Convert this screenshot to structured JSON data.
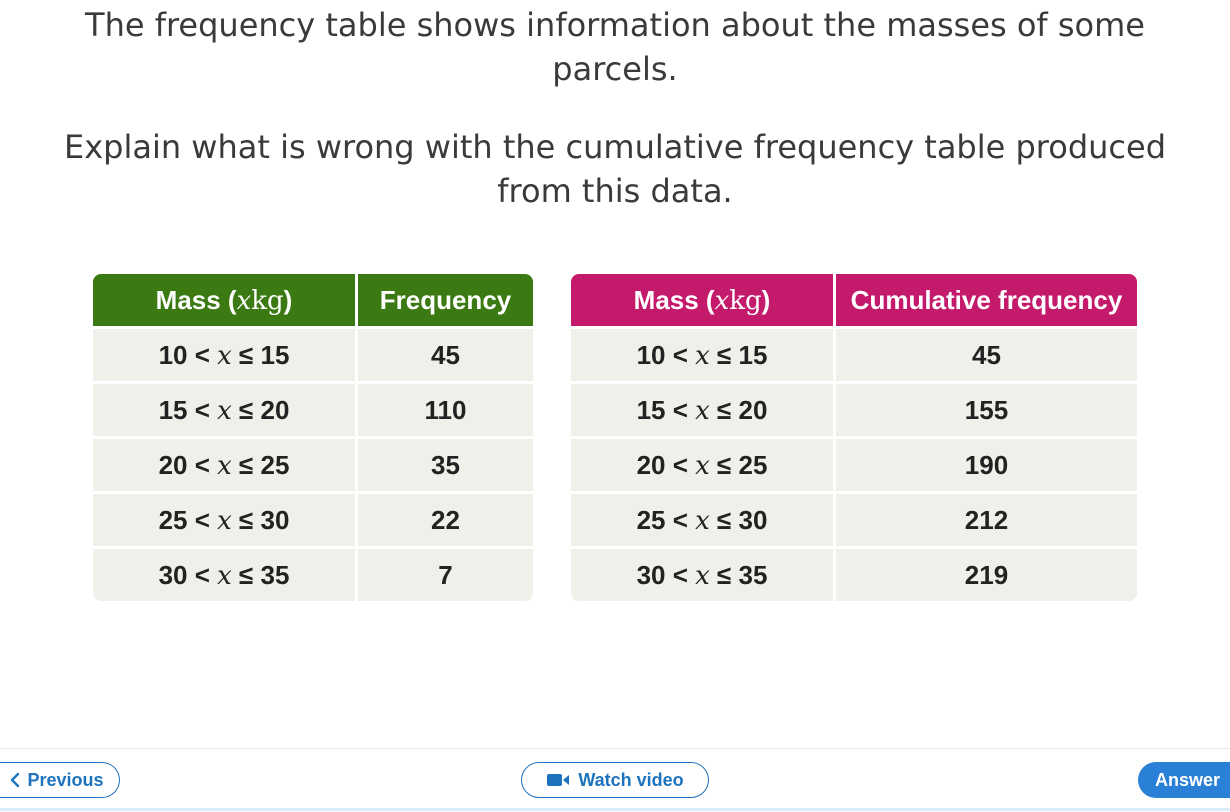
{
  "question": {
    "line1": "The frequency table shows information about the masses of some parcels.",
    "line2": "Explain what is wrong with the cumulative frequency table produced from this data."
  },
  "frequency_table": {
    "headers": [
      "Mass (",
      "x",
      "kg",
      ")",
      "Frequency"
    ],
    "rows": [
      {
        "lo": "10",
        "hi": "15",
        "value": "45"
      },
      {
        "lo": "15",
        "hi": "20",
        "value": "110"
      },
      {
        "lo": "20",
        "hi": "25",
        "value": "35"
      },
      {
        "lo": "25",
        "hi": "30",
        "value": "22"
      },
      {
        "lo": "30",
        "hi": "35",
        "value": "7"
      }
    ],
    "header_color": "#3b7a12"
  },
  "cumulative_table": {
    "headers": [
      "Mass (",
      "x",
      "kg",
      ")",
      "Cumulative frequency"
    ],
    "rows": [
      {
        "lo": "10",
        "hi": "15",
        "value": "45"
      },
      {
        "lo": "15",
        "hi": "20",
        "value": "155"
      },
      {
        "lo": "20",
        "hi": "25",
        "value": "190"
      },
      {
        "lo": "25",
        "hi": "30",
        "value": "212"
      },
      {
        "lo": "30",
        "hi": "35",
        "value": "219"
      }
    ],
    "header_color": "#c41a6b"
  },
  "symbols": {
    "lt": " < ",
    "var": "x",
    "le": " ≤ "
  },
  "footer": {
    "previous_label": "Previous",
    "previous_icon": "chevron-left-icon",
    "watch_label": "Watch video",
    "watch_icon": "video-camera-icon",
    "answer_label": "Answer",
    "accent_color": "#1e73be"
  }
}
